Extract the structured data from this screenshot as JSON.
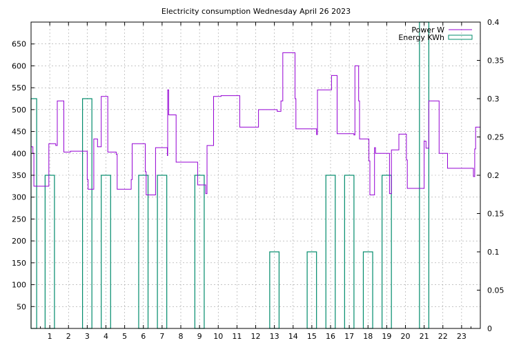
{
  "chart_data": {
    "type": "line",
    "title": "Electricity consumption Wednesday April 26 2023",
    "xlim": [
      0,
      24
    ],
    "ylim_left": [
      0,
      700
    ],
    "ylim_right": [
      0,
      0.4
    ],
    "x_ticks": [
      1,
      2,
      3,
      4,
      5,
      6,
      7,
      8,
      9,
      10,
      11,
      12,
      13,
      14,
      15,
      16,
      17,
      18,
      19,
      20,
      21,
      22,
      23
    ],
    "y_left_ticks": [
      50,
      100,
      150,
      200,
      250,
      300,
      350,
      400,
      450,
      500,
      550,
      600,
      650
    ],
    "y_right_ticks": [
      "0",
      "0.05",
      "0.1",
      "0.15",
      "0.2",
      "0.25",
      "0.3",
      "0.35",
      "0.4"
    ],
    "grid": true,
    "legend_position": "top-right",
    "series": [
      {
        "name": "Power W",
        "axis": "left",
        "color": "#9400d3",
        "style": "step",
        "points": [
          [
            0,
            415
          ],
          [
            0.1,
            400
          ],
          [
            0.15,
            325
          ],
          [
            0.9,
            325
          ],
          [
            0.95,
            422
          ],
          [
            1.3,
            422
          ],
          [
            1.32,
            418
          ],
          [
            1.4,
            520
          ],
          [
            1.7,
            520
          ],
          [
            1.75,
            403
          ],
          [
            2,
            403
          ],
          [
            2.1,
            405
          ],
          [
            2.9,
            405
          ],
          [
            3.0,
            340
          ],
          [
            3.05,
            318
          ],
          [
            3.3,
            318
          ],
          [
            3.35,
            433
          ],
          [
            3.5,
            433
          ],
          [
            3.55,
            415
          ],
          [
            3.7,
            415
          ],
          [
            3.75,
            530
          ],
          [
            4.05,
            530
          ],
          [
            4.1,
            403
          ],
          [
            4.5,
            403
          ],
          [
            4.55,
            398
          ],
          [
            4.6,
            318
          ],
          [
            5.3,
            318
          ],
          [
            5.35,
            340
          ],
          [
            5.4,
            422
          ],
          [
            6.05,
            422
          ],
          [
            6.1,
            358
          ],
          [
            6.15,
            305
          ],
          [
            6.6,
            305
          ],
          [
            6.65,
            413
          ],
          [
            7.25,
            413
          ],
          [
            7.28,
            395
          ],
          [
            7.3,
            545
          ],
          [
            7.35,
            488
          ],
          [
            7.7,
            488
          ],
          [
            7.75,
            380
          ],
          [
            8.85,
            380
          ],
          [
            8.9,
            328
          ],
          [
            9.3,
            328
          ],
          [
            9.33,
            308
          ],
          [
            9.4,
            418
          ],
          [
            9.7,
            418
          ],
          [
            9.75,
            530
          ],
          [
            10.1,
            530
          ],
          [
            10.15,
            532
          ],
          [
            11.1,
            532
          ],
          [
            11.15,
            460
          ],
          [
            12.1,
            460
          ],
          [
            12.15,
            500
          ],
          [
            13.1,
            500
          ],
          [
            13.15,
            496
          ],
          [
            13.3,
            496
          ],
          [
            13.35,
            520
          ],
          [
            13.45,
            630
          ],
          [
            14.05,
            630
          ],
          [
            14.1,
            525
          ],
          [
            14.15,
            456
          ],
          [
            15.2,
            456
          ],
          [
            15.25,
            443
          ],
          [
            15.3,
            545
          ],
          [
            16.0,
            545
          ],
          [
            16.05,
            578
          ],
          [
            16.3,
            578
          ],
          [
            16.35,
            445
          ],
          [
            17.2,
            445
          ],
          [
            17.25,
            442
          ],
          [
            17.3,
            600
          ],
          [
            17.45,
            600
          ],
          [
            17.5,
            520
          ],
          [
            17.55,
            433
          ],
          [
            18.0,
            433
          ],
          [
            18.05,
            383
          ],
          [
            18.1,
            305
          ],
          [
            18.3,
            305
          ],
          [
            18.35,
            413
          ],
          [
            18.4,
            400
          ],
          [
            19.1,
            400
          ],
          [
            19.15,
            308
          ],
          [
            19.25,
            408
          ],
          [
            19.6,
            408
          ],
          [
            19.65,
            444
          ],
          [
            20.0,
            444
          ],
          [
            20.05,
            385
          ],
          [
            20.1,
            320
          ],
          [
            20.95,
            320
          ],
          [
            21.0,
            428
          ],
          [
            21.1,
            412
          ],
          [
            21.2,
            412
          ],
          [
            21.25,
            520
          ],
          [
            21.75,
            520
          ],
          [
            21.8,
            400
          ],
          [
            22.2,
            400
          ],
          [
            22.25,
            366
          ],
          [
            23.6,
            366
          ],
          [
            23.63,
            347
          ],
          [
            23.7,
            410
          ],
          [
            23.75,
            460
          ],
          [
            24,
            460
          ]
        ]
      },
      {
        "name": "Energy KWh",
        "axis": "right",
        "color": "#008b6b",
        "style": "boxes",
        "bars": [
          {
            "x0": 0.0,
            "x1": 0.3,
            "value": 0.3
          },
          {
            "x0": 0.75,
            "x1": 1.25,
            "value": 0.2
          },
          {
            "x0": 2.75,
            "x1": 3.25,
            "value": 0.3
          },
          {
            "x0": 3.75,
            "x1": 4.25,
            "value": 0.2
          },
          {
            "x0": 5.75,
            "x1": 6.25,
            "value": 0.2
          },
          {
            "x0": 6.75,
            "x1": 7.25,
            "value": 0.2
          },
          {
            "x0": 8.75,
            "x1": 9.25,
            "value": 0.2
          },
          {
            "x0": 12.75,
            "x1": 13.25,
            "value": 0.1
          },
          {
            "x0": 14.75,
            "x1": 15.25,
            "value": 0.1
          },
          {
            "x0": 15.75,
            "x1": 16.25,
            "value": 0.2
          },
          {
            "x0": 16.75,
            "x1": 17.25,
            "value": 0.2
          },
          {
            "x0": 17.75,
            "x1": 18.25,
            "value": 0.1
          },
          {
            "x0": 18.75,
            "x1": 19.25,
            "value": 0.2
          },
          {
            "x0": 20.75,
            "x1": 21.25,
            "value": 0.4
          }
        ]
      }
    ]
  }
}
